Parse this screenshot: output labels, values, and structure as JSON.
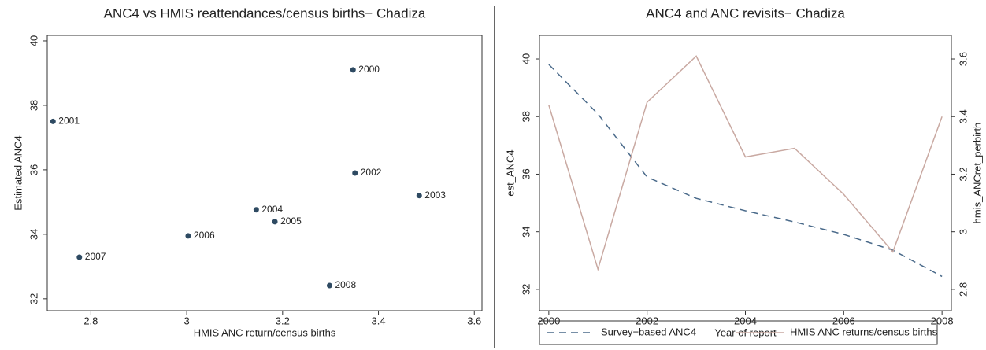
{
  "chart_data": [
    {
      "type": "scatter",
      "title": "ANC4 vs HMIS reattendances/census births− Chadiza",
      "x_label": "HMIS ANC return/census births",
      "y_label": "Estimated ANC4",
      "labels": [
        "2000",
        "2001",
        "2002",
        "2003",
        "2004",
        "2005",
        "2006",
        "2007",
        "2008"
      ],
      "x": [
        3.347,
        2.721,
        3.351,
        3.485,
        3.145,
        3.184,
        3.003,
        2.776,
        3.298
      ],
      "y": [
        39.1,
        37.5,
        35.9,
        35.2,
        34.76,
        34.39,
        33.95,
        33.29,
        32.41
      ],
      "color": "#2e4a62",
      "label_color": "#2e6b2e",
      "xlim": [
        2.709,
        3.616
      ],
      "ylim": [
        31.63,
        40.17
      ],
      "xticks": [
        2.8,
        3,
        3.2,
        3.4,
        3.6
      ],
      "yticks": [
        32,
        34,
        36,
        38,
        40
      ]
    },
    {
      "type": "line",
      "title": "ANC4 and ANC revisits− Chadiza",
      "x_label": "Year of report",
      "y_label": "est_ANC4",
      "y2_label": "hmis_ANCret_perbirth",
      "x": [
        2000,
        2001,
        2002,
        2003,
        2004,
        2005,
        2006,
        2007,
        2008
      ],
      "series": [
        {
          "name": "Survey−based ANC4",
          "color": "#4a6a8a",
          "dash": true,
          "values": [
            39.81,
            38.09,
            35.9,
            35.16,
            34.73,
            34.34,
            33.91,
            33.36,
            32.45
          ]
        },
        {
          "name": "HMIS ANC returns/census births",
          "color": "#c9a9a2",
          "axis": "y2",
          "values": [
            3.44,
            2.87,
            3.45,
            3.61,
            3.26,
            3.29,
            3.13,
            2.93,
            3.4
          ]
        }
      ],
      "xlim": [
        1999.81,
        2008.19
      ],
      "ylim": [
        31.26,
        40.82
      ],
      "y2lim": [
        2.726,
        3.682
      ],
      "xticks": [
        2000,
        2002,
        2004,
        2006,
        2008
      ],
      "yticks": [
        32,
        34,
        36,
        38,
        40
      ],
      "y2ticks": [
        2.8,
        3,
        3.2,
        3.4,
        3.6
      ],
      "legend": "bottom"
    }
  ]
}
